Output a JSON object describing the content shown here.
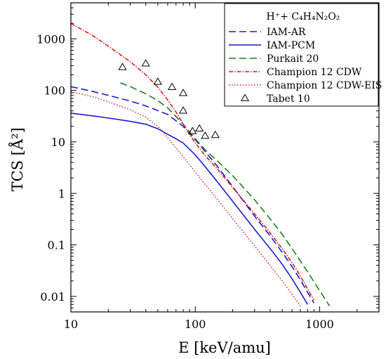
{
  "chart_data": {
    "type": "line",
    "xscale": "log",
    "yscale": "log",
    "xlim": [
      10,
      3000
    ],
    "ylim": [
      0.005,
      5000
    ],
    "xlabel": "E [keV/amu]",
    "ylabel": "TCS [Å²]",
    "x_ticks": [
      {
        "value": 10,
        "label": "10"
      },
      {
        "value": 100,
        "label": "100"
      },
      {
        "value": 1000,
        "label": "1000"
      }
    ],
    "y_ticks": [
      {
        "value": 0.01,
        "label": "0.01"
      },
      {
        "value": 0.1,
        "label": "0.1"
      },
      {
        "value": 1,
        "label": "1"
      },
      {
        "value": 10,
        "label": "10"
      },
      {
        "value": 100,
        "label": "100"
      },
      {
        "value": 1000,
        "label": "1000"
      }
    ],
    "grid": false,
    "legend": {
      "position": "top-right",
      "title": "H⁺+ C₄H₄N₂O₂"
    },
    "series": [
      {
        "name": "IAM-AR",
        "color": "#1a1ad6",
        "dash": "10,5",
        "width": 1.6,
        "points": [
          [
            10,
            118
          ],
          [
            15,
            95
          ],
          [
            20,
            80
          ],
          [
            30,
            62
          ],
          [
            40,
            50
          ],
          [
            60,
            34
          ],
          [
            80,
            20
          ],
          [
            100,
            11
          ],
          [
            120,
            6.5
          ],
          [
            150,
            3.4
          ],
          [
            200,
            1.35
          ],
          [
            300,
            0.36
          ],
          [
            400,
            0.15
          ],
          [
            500,
            0.072
          ],
          [
            600,
            0.038
          ],
          [
            700,
            0.021
          ],
          [
            800,
            0.012
          ],
          [
            900,
            0.0075
          ]
        ]
      },
      {
        "name": "IAM-PCM",
        "color": "#1a1ad6",
        "dash": "",
        "width": 1.6,
        "points": [
          [
            10,
            36
          ],
          [
            15,
            32
          ],
          [
            20,
            29
          ],
          [
            30,
            25
          ],
          [
            40,
            22
          ],
          [
            50,
            18
          ],
          [
            60,
            14
          ],
          [
            70,
            11.5
          ],
          [
            80,
            9.5
          ],
          [
            100,
            5.6
          ],
          [
            120,
            3.3
          ],
          [
            150,
            1.7
          ],
          [
            200,
            0.7
          ],
          [
            300,
            0.2
          ],
          [
            400,
            0.085
          ],
          [
            500,
            0.042
          ],
          [
            600,
            0.022
          ],
          [
            700,
            0.012
          ],
          [
            800,
            0.007
          ]
        ]
      },
      {
        "name": "Purkait 20",
        "color": "#1e7d1e",
        "dash": "10,5",
        "width": 1.6,
        "points": [
          [
            25,
            140
          ],
          [
            30,
            118
          ],
          [
            40,
            86
          ],
          [
            50,
            63
          ],
          [
            60,
            46
          ],
          [
            80,
            22
          ],
          [
            100,
            11.5
          ],
          [
            120,
            7
          ],
          [
            150,
            4.3
          ],
          [
            200,
            2.2
          ],
          [
            300,
            0.75
          ],
          [
            400,
            0.32
          ],
          [
            500,
            0.16
          ],
          [
            600,
            0.085
          ],
          [
            800,
            0.03
          ],
          [
            1000,
            0.013
          ],
          [
            1200,
            0.0065
          ]
        ]
      },
      {
        "name": "Champion 12 CDW",
        "color": "#d91a1a",
        "dash": "6,2,1.5,2",
        "width": 1.6,
        "points": [
          [
            10,
            2000
          ],
          [
            15,
            1150
          ],
          [
            20,
            720
          ],
          [
            30,
            360
          ],
          [
            40,
            200
          ],
          [
            50,
            115
          ],
          [
            60,
            65
          ],
          [
            70,
            38
          ],
          [
            80,
            22
          ],
          [
            100,
            9.5
          ],
          [
            120,
            5.4
          ],
          [
            150,
            3.0
          ],
          [
            200,
            1.3
          ],
          [
            300,
            0.4
          ],
          [
            400,
            0.17
          ],
          [
            500,
            0.085
          ],
          [
            600,
            0.045
          ],
          [
            700,
            0.025
          ],
          [
            800,
            0.014
          ],
          [
            900,
            0.0085
          ]
        ]
      },
      {
        "name": "Champion 12 CDW-EIS",
        "color": "#d91a1a",
        "dash": "1.5,2.5",
        "width": 1.4,
        "points": [
          [
            10,
            95
          ],
          [
            15,
            75
          ],
          [
            20,
            60
          ],
          [
            30,
            42
          ],
          [
            40,
            30
          ],
          [
            50,
            20
          ],
          [
            60,
            12
          ],
          [
            80,
            5.2
          ],
          [
            100,
            2.6
          ],
          [
            120,
            1.5
          ],
          [
            150,
            0.78
          ],
          [
            200,
            0.32
          ],
          [
            300,
            0.095
          ],
          [
            400,
            0.04
          ],
          [
            500,
            0.02
          ],
          [
            600,
            0.011
          ],
          [
            700,
            0.0065
          ]
        ]
      }
    ],
    "markers": {
      "name": "Tabet 10",
      "symbol": "triangle-open",
      "points": [
        [
          26,
          280
        ],
        [
          40,
          330
        ],
        [
          50,
          145
        ],
        [
          65,
          115
        ],
        [
          80,
          88
        ],
        [
          80,
          40
        ],
        [
          95,
          16
        ],
        [
          108,
          18
        ],
        [
          120,
          13
        ],
        [
          145,
          13.5
        ]
      ]
    }
  }
}
